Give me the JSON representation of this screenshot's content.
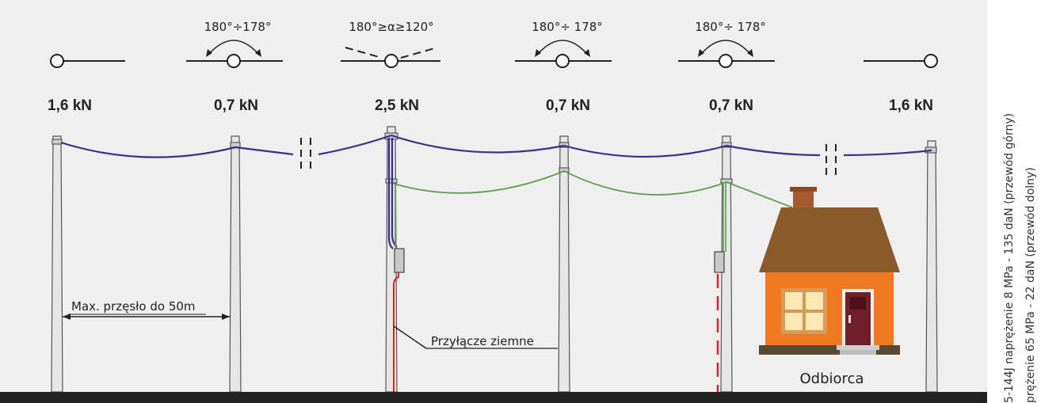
{
  "forces": [
    "1,6 kN",
    "0,7 kN",
    "2,5 kN",
    "0,7 kN",
    "0,7 kN",
    "1,6 kN"
  ],
  "angles": [
    "180°÷178°",
    "180°≥α≥120°",
    "180°÷ 178°",
    "180°÷ 178°"
  ],
  "labels": {
    "span": "Max. przęsło do 50m",
    "ground_connection": "Przyłącze ziemne",
    "consumer": "Odbiorca"
  },
  "side_text": {
    "line1": "5-144J naprężenie 8 MPa - 135 daN (przewód górny)",
    "line2": "prężenie 65 MPa - 22 daN (przewód dolny)"
  },
  "colors": {
    "upper_conductor": "#3a2f8c",
    "lower_conductor": "#5f9e4f",
    "underground": "#d6262a",
    "roof": "#8b5a2b",
    "wall": "#f07a22",
    "ground": "#222222"
  }
}
